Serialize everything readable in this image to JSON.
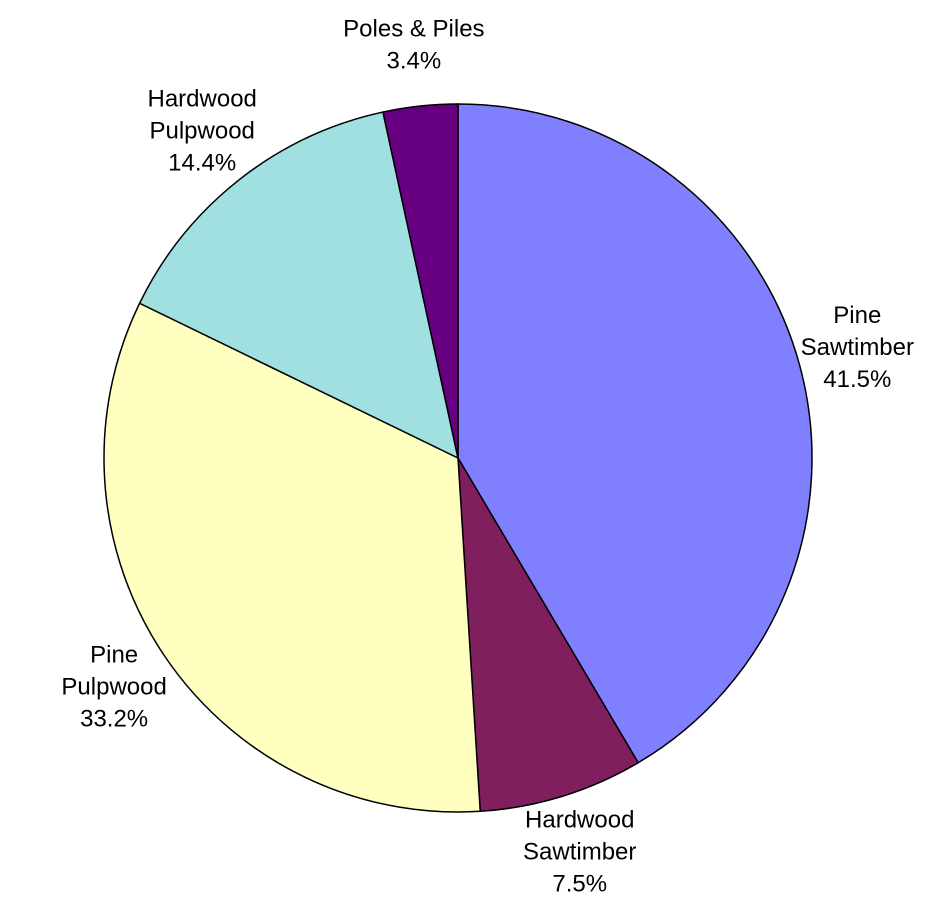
{
  "chart_data": {
    "type": "pie",
    "title": "",
    "slices": [
      {
        "label": [
          "Pine",
          "Sawtimber"
        ],
        "value": 41.5,
        "value_label": "41.5%",
        "color": "#8080FF"
      },
      {
        "label": [
          "Hardwood",
          "Sawtimber"
        ],
        "value": 7.5,
        "value_label": "7.5%",
        "color": "#7F1F5E"
      },
      {
        "label": [
          "Pine",
          "Pulpwood"
        ],
        "value": 33.2,
        "value_label": "33.2%",
        "color": "#FFFFC0"
      },
      {
        "label": [
          "Hardwood",
          "Pulpwood"
        ],
        "value": 14.4,
        "value_label": "14.4%",
        "color": "#A0E0E0"
      },
      {
        "label": [
          "Poles & Piles"
        ],
        "value": 3.4,
        "value_label": "3.4%",
        "color": "#660080"
      }
    ],
    "start_position": "top",
    "direction": "clockwise",
    "legend": "none"
  }
}
